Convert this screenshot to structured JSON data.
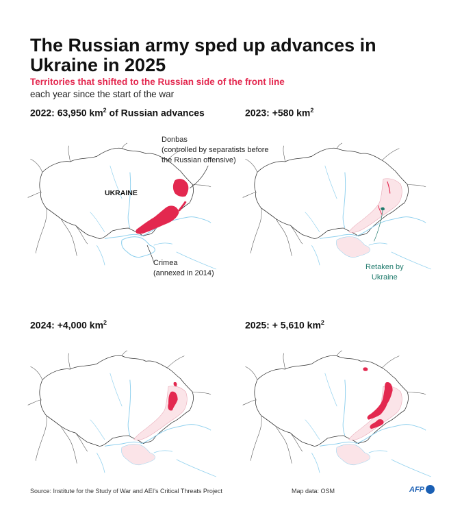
{
  "title": "The Russian army sped up advances in Ukraine in 2025",
  "subtitle": "Territories that shifted to the Russian side of the front line",
  "subtitle2": "each year since the start of the war",
  "panels": [
    {
      "year": "2022",
      "label": "2022: 63,950 km",
      "sup": "2",
      "suffix": " of Russian advances"
    },
    {
      "year": "2023",
      "label": "2023: +580 km",
      "sup": "2",
      "suffix": ""
    },
    {
      "year": "2024",
      "label": "2024: +4,000 km",
      "sup": "2",
      "suffix": ""
    },
    {
      "year": "2025",
      "label": "2025: + 5,610 km",
      "sup": "2",
      "suffix": ""
    }
  ],
  "annotations": {
    "donbas": "Donbas",
    "donbas_note1": "(controlled by separatists before",
    "donbas_note2": "the Russian offensive)",
    "crimea": "Crimea",
    "crimea_note": "(annexed in 2014)",
    "retaken1": "Retaken by",
    "retaken2": "Ukraine",
    "country": "UKRAINE"
  },
  "footer": {
    "source": "Source: Institute for the Study of War and AEI's Critical Threats Project",
    "mapdata": "Map data: OSM",
    "brand": "AFP"
  },
  "colors": {
    "advance": "#e3284f",
    "occupied": "#fbe4e8",
    "water": "#8fd0ee",
    "border": "#333333",
    "retaken": "#1f7a6c"
  }
}
